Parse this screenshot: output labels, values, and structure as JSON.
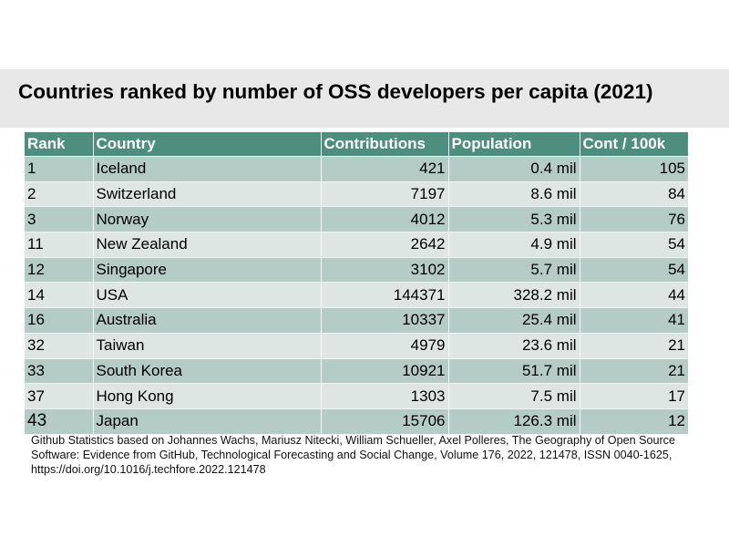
{
  "slide": {
    "title": "Countries ranked by number of OSS developers per capita (2021)"
  },
  "table": {
    "headers": [
      "Rank",
      "Country",
      "Contributions",
      "Population",
      "Cont / 100k"
    ],
    "rows": [
      {
        "rank": "1",
        "country": "Iceland",
        "contributions": "421",
        "population": "0.4 mil",
        "cont_per_100k": "105"
      },
      {
        "rank": "2",
        "country": "Switzerland",
        "contributions": "7197",
        "population": "8.6 mil",
        "cont_per_100k": "84"
      },
      {
        "rank": "3",
        "country": "Norway",
        "contributions": "4012",
        "population": "5.3 mil",
        "cont_per_100k": "76"
      },
      {
        "rank": "11",
        "country": "New Zealand",
        "contributions": "2642",
        "population": "4.9 mil",
        "cont_per_100k": "54"
      },
      {
        "rank": "12",
        "country": "Singapore",
        "contributions": "3102",
        "population": "5.7 mil",
        "cont_per_100k": "54"
      },
      {
        "rank": "14",
        "country": "USA",
        "contributions": "144371",
        "population": "328.2 mil",
        "cont_per_100k": "44"
      },
      {
        "rank": "16",
        "country": "Australia",
        "contributions": "10337",
        "population": "25.4 mil",
        "cont_per_100k": "41"
      },
      {
        "rank": "32",
        "country": "Taiwan",
        "contributions": "4979",
        "population": "23.6 mil",
        "cont_per_100k": "21"
      },
      {
        "rank": "33",
        "country": "South Korea",
        "contributions": "10921",
        "population": "51.7 mil",
        "cont_per_100k": "21"
      },
      {
        "rank": "37",
        "country": "Hong Kong",
        "contributions": "1303",
        "population": "7.5 mil",
        "cont_per_100k": "17"
      },
      {
        "rank": "43",
        "country": "Japan",
        "contributions": "15706",
        "population": "126.3 mil",
        "cont_per_100k": "12"
      }
    ]
  },
  "citation": "Github Statistics based on Johannes Wachs, Mariusz Nitecki, William Schueller, Axel Polleres, The Geography of Open Source Software: Evidence from GitHub, Technological Forecasting and Social Change, Volume 176, 2022, 121478, ISSN 0040-1625, https://doi.org/10.1016/j.techfore.2022.121478",
  "colors": {
    "header_bg": "#4e8e7e",
    "row_dark": "#b5cbc6",
    "row_light": "#dde6e3",
    "title_band": "#e8e8e8"
  }
}
